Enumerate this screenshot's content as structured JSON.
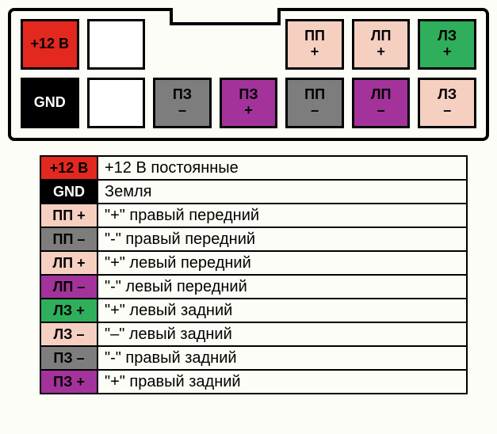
{
  "connector": {
    "rows": [
      [
        {
          "kind": "pin",
          "label": "+12 В",
          "bg": "#e3281f",
          "fg": "#000000"
        },
        {
          "kind": "pin",
          "label": "",
          "bg": "#ffffff",
          "fg": "#000000"
        },
        {
          "kind": "spacer"
        },
        {
          "kind": "spacer"
        },
        {
          "kind": "pin",
          "label": "ПП\n+",
          "bg": "#f5cfc0",
          "fg": "#000000"
        },
        {
          "kind": "pin",
          "label": "ЛП\n+",
          "bg": "#f5cfc0",
          "fg": "#000000"
        },
        {
          "kind": "pin",
          "label": "ЛЗ\n+",
          "bg": "#2fae5b",
          "fg": "#000000"
        }
      ],
      [
        {
          "kind": "pin",
          "label": "GND",
          "bg": "#000000",
          "fg": "#ffffff"
        },
        {
          "kind": "pin",
          "label": "",
          "bg": "#ffffff",
          "fg": "#000000"
        },
        {
          "kind": "pin",
          "label": "ПЗ\n–",
          "bg": "#7d7d7d",
          "fg": "#000000"
        },
        {
          "kind": "pin",
          "label": "ПЗ\n+",
          "bg": "#a3339b",
          "fg": "#000000"
        },
        {
          "kind": "pin",
          "label": "ПП\n–",
          "bg": "#7d7d7d",
          "fg": "#000000"
        },
        {
          "kind": "pin",
          "label": "ЛП\n–",
          "bg": "#a3339b",
          "fg": "#000000"
        },
        {
          "kind": "pin",
          "label": "ЛЗ\n–",
          "bg": "#f5cfc0",
          "fg": "#000000"
        }
      ]
    ]
  },
  "legend": [
    {
      "swatch": "+12 В",
      "bg": "#e3281f",
      "fg": "#000000",
      "desc": "+12 В постоянные"
    },
    {
      "swatch": "GND",
      "bg": "#000000",
      "fg": "#ffffff",
      "desc": "Земля"
    },
    {
      "swatch": "ПП +",
      "bg": "#f5cfc0",
      "fg": "#000000",
      "desc": "\"+\" правый передний"
    },
    {
      "swatch": "ПП –",
      "bg": "#7d7d7d",
      "fg": "#000000",
      "desc": "\"-\" правый передний"
    },
    {
      "swatch": "ЛП +",
      "bg": "#f5cfc0",
      "fg": "#000000",
      "desc": "\"+\" левый передний"
    },
    {
      "swatch": "ЛП –",
      "bg": "#a3339b",
      "fg": "#000000",
      "desc": "\"-\" левый передний"
    },
    {
      "swatch": "ЛЗ +",
      "bg": "#2fae5b",
      "fg": "#000000",
      "desc": "\"+\" левый задний"
    },
    {
      "swatch": "ЛЗ –",
      "bg": "#f5cfc0",
      "fg": "#000000",
      "desc": "\"–\" левый задний"
    },
    {
      "swatch": "ПЗ –",
      "bg": "#7d7d7d",
      "fg": "#000000",
      "desc": "\"-\" правый задний"
    },
    {
      "swatch": "ПЗ +",
      "bg": "#a3339b",
      "fg": "#000000",
      "desc": "\"+\" правый задний"
    }
  ]
}
